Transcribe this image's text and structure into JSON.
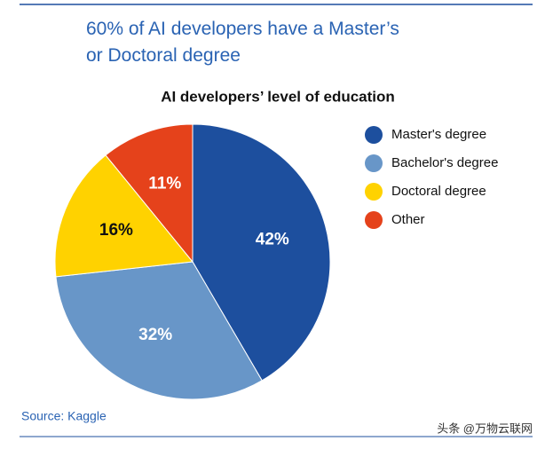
{
  "chart_data": {
    "type": "pie",
    "title": "60% of AI developers have a Master’s or Doctoral degree",
    "subtitle": "AI developers’ level of education",
    "categories": [
      "Master's degree",
      "Bachelor's degree",
      "Doctoral degree",
      "Other"
    ],
    "values": [
      42,
      32,
      16,
      11
    ],
    "value_labels": [
      "42%",
      "32%",
      "16%",
      "11%"
    ],
    "colors": [
      "#1d4f9e",
      "#6896c8",
      "#ffd200",
      "#e5421b"
    ],
    "legend": "right",
    "source": "Source: Kaggle",
    "watermark": "头条 @万物云联网"
  }
}
